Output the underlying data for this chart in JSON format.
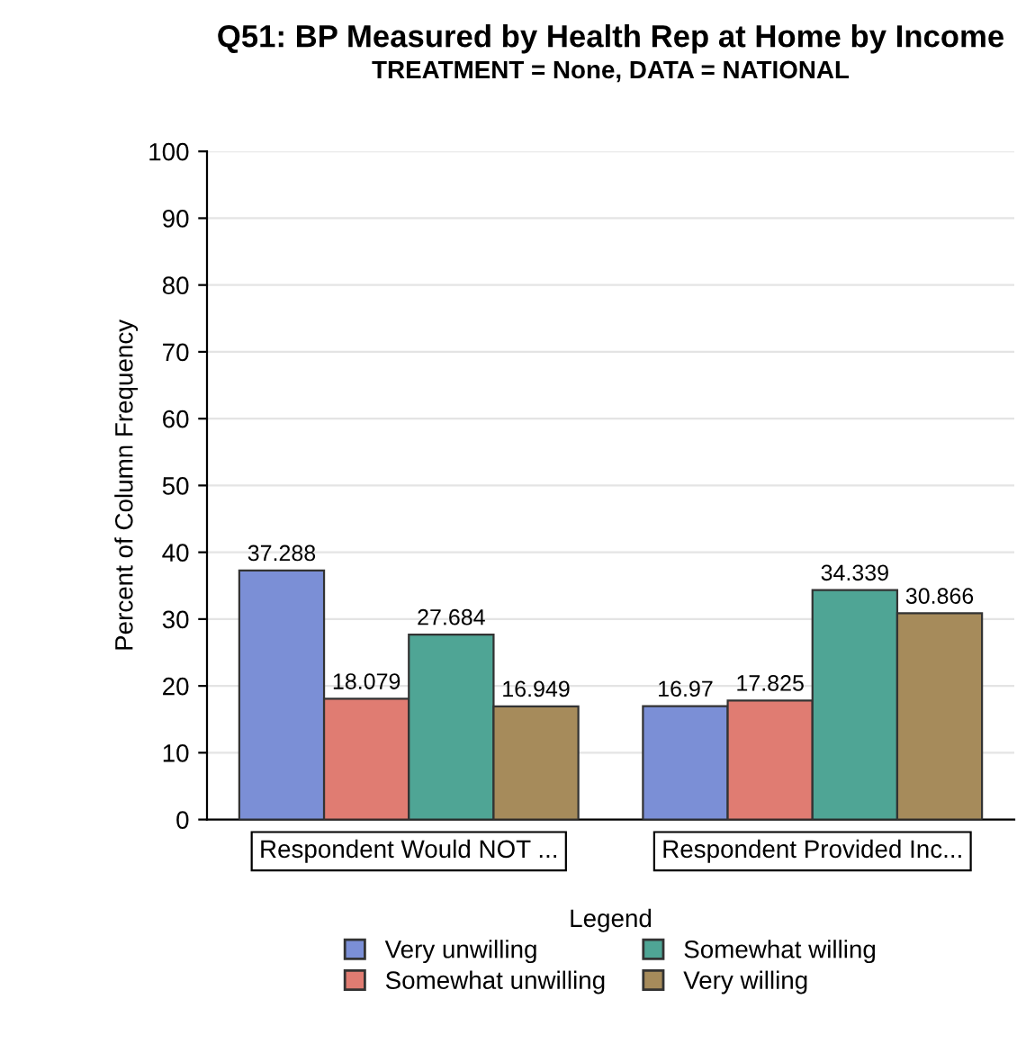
{
  "chart_data": {
    "type": "bar",
    "title": "Q51: BP Measured by Health Rep at Home by Income",
    "subtitle": "TREATMENT = None, DATA = NATIONAL",
    "ylabel": "Percent of Column Frequency",
    "legend_title": "Legend",
    "categories": [
      "Respondent Would NOT ...",
      "Respondent Provided Inc..."
    ],
    "series": [
      {
        "name": "Very unwilling",
        "color": "#7b8fd6",
        "values": [
          37.288,
          16.97
        ]
      },
      {
        "name": "Somewhat unwilling",
        "color": "#e07c72",
        "values": [
          18.079,
          17.825
        ]
      },
      {
        "name": "Somewhat willing",
        "color": "#4fa595",
        "values": [
          27.684,
          34.339
        ]
      },
      {
        "name": "Very willing",
        "color": "#a68b5b",
        "values": [
          16.949,
          30.866
        ]
      }
    ],
    "ylim": [
      0,
      100
    ],
    "yticks": [
      0,
      10,
      20,
      30,
      40,
      50,
      60,
      70,
      80,
      90,
      100
    ],
    "grid": "y",
    "legend": "bottom",
    "data_labels": true
  }
}
